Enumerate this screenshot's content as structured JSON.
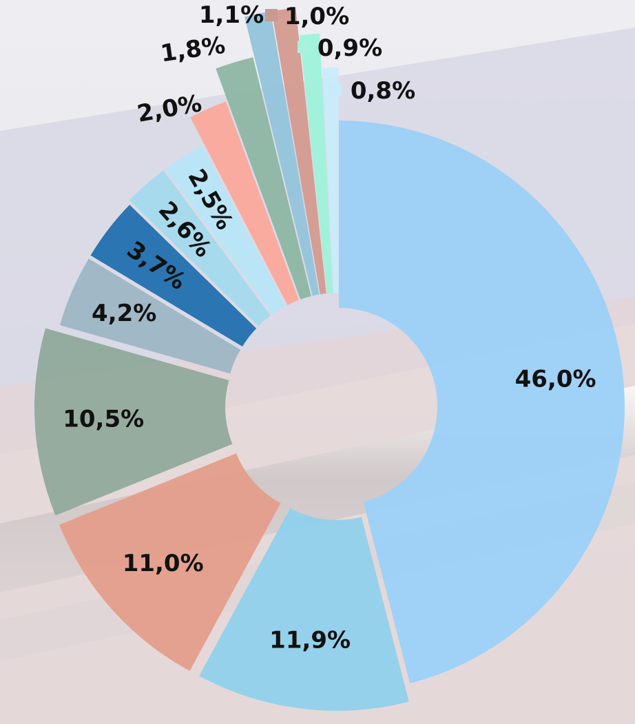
{
  "chart_data": {
    "type": "pie",
    "donut": true,
    "exploded": true,
    "categories": [
      "46,0%",
      "11,9%",
      "11,0%",
      "10,5%",
      "4,2%",
      "3,7%",
      "2,6%",
      "2,5%",
      "2,0%",
      "1,8%",
      "1,1%",
      "1,0%",
      "0,9%",
      "0,8%"
    ],
    "values": [
      46.0,
      11.9,
      11.0,
      10.5,
      4.2,
      3.7,
      2.6,
      2.5,
      2.0,
      1.8,
      1.1,
      1.0,
      0.9,
      0.8
    ],
    "labels": [
      "46,0%",
      "11,9%",
      "11,0%",
      "10,5%",
      "4,2%",
      "3,7%",
      "2,6%",
      "2,5%",
      "2,0%",
      "1,8%",
      "1,1%",
      "1,0%",
      "0,9%",
      "0,8%"
    ],
    "colors": [
      "#9dd1f7",
      "#8fd0ec",
      "#e49d8a",
      "#8fa99b",
      "#9db6c3",
      "#1f6fae",
      "#a5daee",
      "#b7e6f6",
      "#fba89a",
      "#8db6a4",
      "#92c4db",
      "#d49a8e",
      "#9ef2da",
      "#c9ecfb"
    ],
    "title": "",
    "legend": "none"
  }
}
